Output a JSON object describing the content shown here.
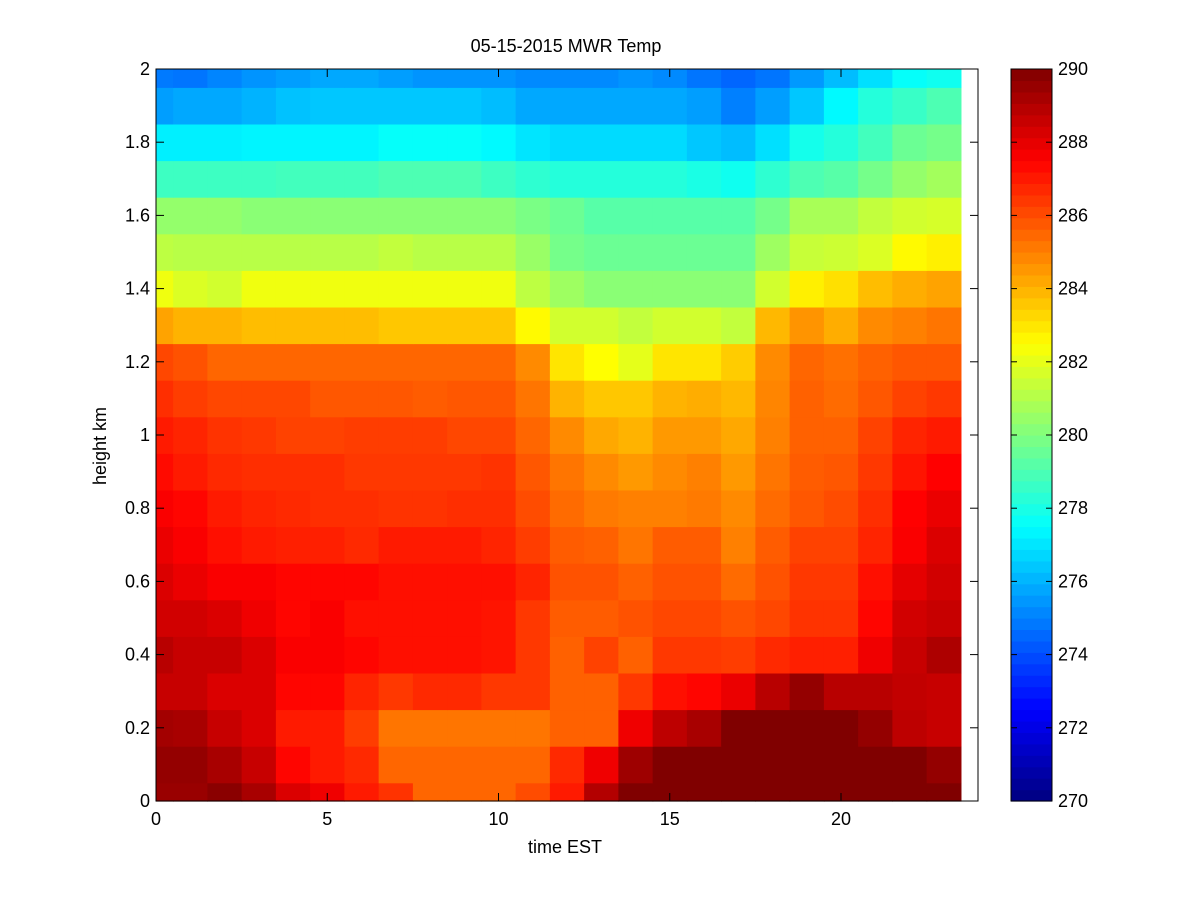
{
  "chart_data": {
    "type": "heatmap",
    "title": "05-15-2015 MWR Temp",
    "xlabel": "time EST",
    "ylabel": "height km",
    "xlim": [
      0,
      24
    ],
    "ylim": [
      0,
      2
    ],
    "x_ticks": [
      "0",
      "5",
      "10",
      "15",
      "20"
    ],
    "y_ticks": [
      "0",
      "0.2",
      "0.4",
      "0.6",
      "0.8",
      "1",
      "1.2",
      "1.4",
      "1.6",
      "1.8",
      "2"
    ],
    "colorbar": {
      "clim": [
        270,
        290
      ],
      "ticks": [
        "270",
        "272",
        "274",
        "276",
        "278",
        "280",
        "282",
        "284",
        "286",
        "288",
        "290"
      ],
      "colormap": "jet"
    },
    "time_edges": [
      0,
      0.5,
      1.5,
      2.5,
      3.5,
      4.5,
      5.5,
      6.5,
      7.5,
      8.5,
      9.5,
      10.5,
      11.5,
      12.5,
      13.5,
      14.5,
      15.5,
      16.5,
      17.5,
      18.5,
      19.5,
      20.5,
      21.5,
      22.5,
      23.5
    ],
    "height_edges": [
      0,
      0.05,
      0.15,
      0.25,
      0.35,
      0.45,
      0.55,
      0.65,
      0.75,
      0.85,
      0.95,
      1.05,
      1.15,
      1.25,
      1.35,
      1.45,
      1.55,
      1.65,
      1.75,
      1.85,
      1.95,
      2.0
    ],
    "values_K": [
      [
        289.5,
        289.5,
        289.8,
        289.2,
        288.2,
        287.8,
        287.0,
        286.5,
        285.5,
        285.5,
        285.5,
        286.0,
        287.0,
        289.0,
        290.0,
        290.0,
        290.0,
        290.0,
        290.0,
        290.0,
        290.0,
        290.0,
        290.0,
        290.0
      ],
      [
        289.6,
        289.6,
        289.2,
        288.6,
        287.4,
        287.0,
        286.7,
        285.5,
        285.5,
        285.5,
        285.5,
        285.5,
        286.7,
        287.8,
        289.4,
        290.0,
        290.0,
        290.0,
        290.0,
        290.0,
        290.0,
        290.0,
        290.0,
        289.6
      ],
      [
        289.3,
        289.2,
        288.6,
        288.2,
        287.0,
        287.0,
        286.3,
        285.2,
        285.2,
        285.2,
        285.2,
        285.2,
        285.6,
        285.6,
        287.8,
        288.8,
        289.2,
        290.0,
        290.0,
        290.0,
        290.0,
        289.6,
        288.8,
        288.6
      ],
      [
        288.6,
        288.6,
        288.2,
        288.2,
        287.4,
        287.4,
        286.8,
        286.4,
        286.7,
        286.7,
        286.4,
        286.4,
        285.6,
        285.6,
        286.4,
        287.2,
        287.4,
        287.9,
        288.9,
        289.6,
        288.9,
        288.9,
        288.7,
        288.6
      ],
      [
        288.9,
        288.6,
        288.6,
        288.2,
        287.6,
        287.6,
        287.4,
        287.2,
        287.2,
        287.2,
        287.1,
        286.4,
        285.6,
        286.2,
        285.6,
        286.4,
        286.4,
        286.3,
        286.7,
        286.9,
        286.9,
        287.8,
        288.6,
        289.1
      ],
      [
        288.4,
        288.4,
        288.2,
        287.8,
        287.4,
        287.6,
        287.2,
        287.2,
        287.2,
        287.2,
        287.1,
        286.4,
        285.7,
        285.7,
        285.9,
        286.1,
        286.1,
        285.9,
        286.1,
        286.5,
        286.5,
        287.4,
        288.4,
        288.6
      ],
      [
        288.2,
        287.9,
        287.6,
        287.6,
        287.4,
        287.4,
        287.4,
        287.2,
        287.2,
        287.2,
        287.2,
        286.8,
        285.9,
        285.9,
        285.6,
        285.9,
        285.9,
        285.4,
        285.9,
        286.4,
        286.4,
        287.2,
        288.0,
        288.4
      ],
      [
        287.9,
        287.6,
        287.2,
        287.0,
        286.9,
        286.9,
        286.7,
        287.0,
        287.0,
        287.0,
        286.8,
        286.3,
        285.7,
        285.6,
        285.2,
        285.7,
        285.7,
        285.0,
        285.7,
        286.2,
        286.2,
        286.8,
        287.6,
        288.2
      ],
      [
        287.6,
        287.4,
        287.0,
        286.8,
        286.7,
        286.6,
        286.6,
        286.5,
        286.5,
        286.6,
        286.6,
        286.0,
        285.4,
        285.1,
        285.0,
        285.0,
        285.1,
        284.8,
        285.4,
        285.8,
        286.0,
        286.6,
        287.5,
        287.9
      ],
      [
        287.3,
        287.0,
        286.7,
        286.6,
        286.6,
        286.6,
        286.4,
        286.4,
        286.4,
        286.4,
        286.5,
        285.8,
        285.2,
        284.8,
        284.5,
        284.8,
        285.0,
        284.5,
        285.2,
        285.7,
        285.8,
        286.4,
        287.1,
        287.5
      ],
      [
        287.0,
        286.8,
        286.5,
        286.4,
        286.2,
        286.2,
        286.3,
        286.3,
        286.3,
        286.1,
        286.1,
        285.5,
        284.8,
        284.2,
        284.0,
        284.5,
        284.5,
        284.2,
        285.0,
        285.6,
        285.6,
        286.2,
        286.8,
        287.0
      ],
      [
        286.6,
        286.3,
        286.1,
        286.1,
        286.1,
        285.8,
        285.8,
        285.8,
        285.7,
        285.8,
        285.8,
        285.2,
        284.0,
        283.6,
        283.6,
        284.0,
        284.1,
        283.9,
        284.9,
        285.6,
        285.4,
        285.8,
        286.2,
        286.4
      ],
      [
        286.1,
        285.9,
        285.5,
        285.5,
        285.5,
        285.5,
        285.5,
        285.5,
        285.5,
        285.5,
        285.5,
        284.8,
        283.0,
        282.5,
        282.0,
        283.0,
        283.0,
        283.5,
        284.8,
        285.5,
        285.3,
        285.6,
        285.8,
        285.8
      ],
      [
        284.3,
        284.0,
        284.0,
        283.8,
        283.8,
        283.8,
        283.8,
        283.6,
        283.6,
        283.6,
        283.6,
        282.6,
        281.6,
        281.6,
        281.3,
        281.6,
        281.6,
        281.3,
        283.9,
        284.6,
        284.1,
        284.8,
        285.0,
        285.2
      ],
      [
        282.2,
        281.8,
        281.6,
        282.2,
        282.2,
        282.2,
        282.2,
        282.2,
        282.2,
        282.2,
        282.2,
        281.2,
        280.6,
        280.2,
        280.2,
        280.2,
        280.2,
        280.2,
        281.6,
        282.8,
        283.1,
        283.8,
        284.1,
        284.3
      ],
      [
        281.2,
        281.1,
        281.1,
        281.1,
        281.1,
        281.1,
        281.1,
        281.3,
        281.1,
        281.1,
        281.1,
        280.5,
        279.8,
        279.6,
        279.6,
        279.6,
        279.6,
        279.6,
        280.6,
        281.4,
        281.5,
        281.8,
        282.6,
        282.8
      ],
      [
        280.4,
        280.4,
        280.4,
        280.2,
        280.2,
        280.2,
        280.2,
        280.2,
        280.2,
        280.2,
        280.2,
        279.9,
        279.6,
        279.2,
        279.2,
        279.2,
        279.2,
        279.2,
        279.8,
        280.8,
        280.8,
        281.3,
        281.6,
        281.7
      ],
      [
        278.7,
        278.7,
        278.7,
        278.7,
        278.8,
        278.8,
        278.8,
        279.0,
        279.0,
        279.0,
        278.7,
        278.4,
        278.2,
        278.2,
        278.2,
        278.2,
        278.0,
        277.8,
        278.4,
        279.0,
        279.2,
        279.8,
        280.4,
        280.7
      ],
      [
        277.2,
        277.2,
        277.2,
        277.3,
        277.3,
        277.3,
        277.3,
        277.6,
        277.6,
        277.6,
        277.4,
        277.0,
        276.8,
        276.8,
        276.8,
        276.8,
        276.4,
        276.2,
        276.9,
        277.9,
        278.2,
        278.8,
        279.6,
        279.8
      ],
      [
        275.6,
        275.8,
        275.8,
        276.0,
        276.3,
        276.4,
        276.4,
        276.4,
        276.4,
        276.4,
        276.2,
        275.8,
        275.8,
        275.8,
        275.8,
        275.8,
        275.6,
        275.0,
        275.6,
        276.4,
        277.4,
        278.2,
        278.6,
        279.0
      ],
      [
        274.9,
        274.8,
        275.1,
        275.4,
        275.6,
        275.8,
        275.8,
        275.6,
        275.4,
        275.4,
        275.4,
        275.2,
        275.2,
        275.2,
        275.4,
        275.2,
        274.8,
        274.5,
        274.8,
        275.5,
        276.2,
        276.9,
        277.6,
        277.8
      ]
    ]
  }
}
